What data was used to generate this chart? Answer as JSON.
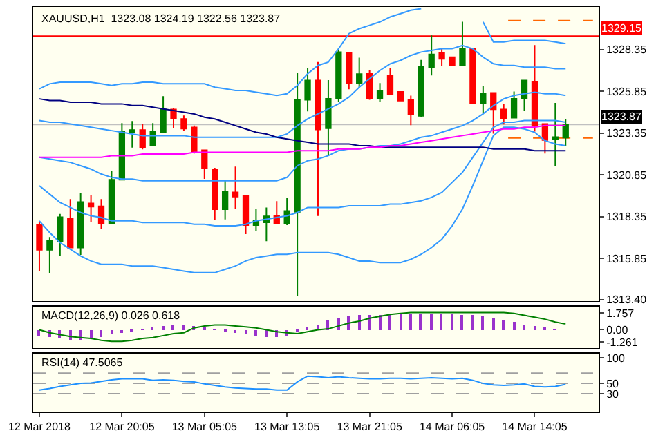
{
  "chart_data": [
    {
      "type": "candlestick",
      "title": "XAUUSD,H1  1323.08 1324.19 1322.56 1323.87",
      "tick_labels": "y",
      "categories": [
        null,
        null,
        null,
        null,
        null,
        null,
        null,
        null,
        null,
        null,
        null,
        null,
        null,
        null,
        null,
        null,
        null,
        null,
        null,
        null,
        null,
        null,
        null,
        null,
        null,
        null,
        null,
        null,
        null,
        null,
        null,
        null,
        null,
        null,
        null,
        null,
        null,
        null,
        null,
        null,
        null,
        null,
        null,
        null,
        null,
        null,
        null,
        null,
        null,
        null,
        null,
        null
      ],
      "ohlc": [
        [
          1317.89,
          1318.01,
          1315.11,
          1316.37
        ],
        [
          1316.37,
          1317.13,
          1314.98,
          1316.93
        ],
        [
          1316.88,
          1318.52,
          1315.99,
          1318.32
        ],
        [
          1318.24,
          1319.4,
          1316.5,
          1316.5
        ],
        [
          1316.5,
          1319.78,
          1316.07,
          1319.23
        ],
        [
          1319.15,
          1319.65,
          1318.01,
          1318.95
        ],
        [
          1318.97,
          1319.4,
          1317.63,
          1317.96
        ],
        [
          1317.96,
          1321.09,
          1317.96,
          1320.56
        ],
        [
          1320.56,
          1323.95,
          1320.56,
          1323.44
        ],
        [
          1323.39,
          1324.07,
          1322.48,
          1323.54
        ],
        [
          1323.54,
          1323.9,
          1322.38,
          1322.48
        ],
        [
          1322.63,
          1323.95,
          1322.56,
          1323.44
        ],
        [
          1323.39,
          1325.56,
          1323.39,
          1324.78
        ],
        [
          1324.76,
          1324.83,
          1323.64,
          1324.25
        ],
        [
          1324.2,
          1324.4,
          1323.49,
          1323.62
        ],
        [
          1323.69,
          1323.8,
          1322.13,
          1322.25
        ],
        [
          1322.33,
          1322.33,
          1320.61,
          1321.24
        ],
        [
          1321.17,
          1321.27,
          1318.14,
          1318.8
        ],
        [
          1318.8,
          1320.49,
          1318.19,
          1319.83
        ],
        [
          1319.81,
          1321.35,
          1318.82,
          1319.55
        ],
        [
          1319.6,
          1319.6,
          1317.31,
          1317.84
        ],
        [
          1317.84,
          1318.82,
          1317.51,
          1318.09
        ],
        [
          1318.01,
          1318.9,
          1316.88,
          1318.37
        ],
        [
          1318.39,
          1319.28,
          1317.96,
          1317.96
        ],
        [
          1317.96,
          1319.5,
          1317.84,
          1318.69
        ],
        [
          1318.64,
          1326.98,
          1313.59,
          1325.34
        ],
        [
          1325.34,
          1327.23,
          1324.65,
          1326.5
        ],
        [
          1326.5,
          1327.61,
          1318.39,
          1323.57
        ],
        [
          1323.64,
          1326.52,
          1322.05,
          1325.41
        ],
        [
          1325.41,
          1328.44,
          1325.21,
          1328.19
        ],
        [
          1328.16,
          1328.16,
          1325.97,
          1326.35
        ],
        [
          1326.35,
          1327.86,
          1326.09,
          1326.88
        ],
        [
          1326.9,
          1327.1,
          1325.34,
          1325.41
        ],
        [
          1325.41,
          1326.35,
          1325.21,
          1325.89
        ],
        [
          1326.78,
          1327.23,
          1325.66,
          1325.66
        ],
        [
          1325.82,
          1325.82,
          1325.29,
          1325.29
        ],
        [
          1325.34,
          1325.59,
          1323.82,
          1324.45
        ],
        [
          1324.38,
          1327.73,
          1324.33,
          1327.31
        ],
        [
          1327.28,
          1329.2,
          1326.8,
          1328.06
        ],
        [
          1328.16,
          1328.44,
          1327.36,
          1327.79
        ],
        [
          1327.89,
          1327.89,
          1327.36,
          1327.41
        ],
        [
          1327.43,
          1330.01,
          1327.43,
          1328.39
        ],
        [
          1328.39,
          1328.44,
          1325.08,
          1325.13
        ],
        [
          1325.13,
          1326.17,
          1324.58,
          1325.71
        ],
        [
          1325.76,
          1325.76,
          1323.32,
          1324.78
        ],
        [
          1324.76,
          1325.08,
          1323.87,
          1324.25
        ],
        [
          1324.27,
          1325.84,
          1324.27,
          1325.41
        ],
        [
          1325.41,
          1326.5,
          1324.7,
          1326.5
        ],
        [
          1326.42,
          1328.62,
          1323.44,
          1323.77
        ],
        [
          1323.9,
          1323.9,
          1322.13,
          1322.94
        ],
        [
          1322.99,
          1325.16,
          1321.37,
          1323.11
        ],
        [
          1323.08,
          1324.19,
          1322.56,
          1323.87
        ]
      ],
      "colors": [
        "#ff0000",
        "#008000",
        "#008000",
        "#ff0000",
        "#008000",
        "#ff0000",
        "#ff0000",
        "#008000",
        "#008000",
        "#008000",
        "#ff0000",
        "#008000",
        "#008000",
        "#ff0000",
        "#ff0000",
        "#ff0000",
        "#ff0000",
        "#ff0000",
        "#008000",
        "#ff0000",
        "#ff0000",
        "#008000",
        "#008000",
        "#ff0000",
        "#008000",
        "#008000",
        "#008000",
        "#ff0000",
        "#008000",
        "#008000",
        "#ff0000",
        "#008000",
        "#ff0000",
        "#008000",
        "#ff0000",
        "#ff0000",
        "#ff0000",
        "#008000",
        "#008000",
        "#ff0000",
        "#ff0000",
        "#008000",
        "#ff0000",
        "#008000",
        "#ff0000",
        "#ff0000",
        "#008000",
        "#008000",
        "#ff0000",
        "#ff0000",
        "#008000",
        "#008000"
      ],
      "series": [
        {
          "type": "line",
          "color": "#3399ff",
          "values": [
            1326.0,
            1326.3,
            1326.4,
            1326.4,
            1326.4,
            1326.4,
            1326.3,
            1326.2,
            1326.3,
            1326.3,
            1326.4,
            1326.4,
            1326.3,
            1326.3,
            1326.3,
            1326.3,
            1326.3,
            1326.1,
            1326.0,
            1325.9,
            1325.9,
            1325.8,
            1325.7,
            1325.6,
            1325.7,
            1326.2,
            1326.9,
            1327.4,
            1327.6,
            1328.4,
            1329.3,
            1329.6,
            1329.8,
            1330.0,
            1330.3,
            1330.5,
            1330.7,
            1330.8,
            null,
            null,
            null,
            null,
            null,
            1330.0,
            1328.8,
            1328.8,
            1328.9,
            1328.9,
            1328.9,
            1328.9,
            1328.8,
            1328.7
          ]
        },
        {
          "type": "line",
          "color": "#3399ff",
          "values": [
            1324.1,
            1324.0,
            1324.0,
            1323.9,
            1323.8,
            1323.7,
            1323.6,
            1323.5,
            1323.4,
            1323.3,
            1323.2,
            1323.2,
            1323.2,
            1323.2,
            1323.2,
            1323.1,
            1323.1,
            1323.1,
            1323.1,
            1323.1,
            1323.1,
            1323.1,
            1323.1,
            1323.1,
            1323.3,
            1323.8,
            1324.2,
            1324.5,
            1324.8,
            1325.1,
            1325.5,
            1326.1,
            1326.6,
            1327.1,
            1327.5,
            1327.7,
            1328.0,
            1328.2,
            1328.3,
            1328.4,
            1328.4,
            1328.6,
            1328.4,
            1327.9,
            1327.5,
            1327.4,
            1327.4,
            1327.3,
            1327.3,
            1327.3,
            1327.2,
            1327.2
          ]
        },
        {
          "type": "line",
          "color": "#3399ff",
          "values": [
            1321.9,
            1321.8,
            1321.7,
            1321.6,
            1321.4,
            1321.2,
            1320.9,
            1320.7,
            1320.6,
            1320.6,
            1320.5,
            1320.5,
            1320.5,
            1320.5,
            1320.5,
            1320.5,
            1320.5,
            1320.5,
            1320.5,
            1320.5,
            1320.5,
            1320.5,
            1320.5,
            1320.5,
            1320.7,
            1321.4,
            1321.7,
            1321.8,
            1322.0,
            1322.3,
            1322.4,
            1322.4,
            1322.5,
            1322.6,
            1322.6,
            1322.7,
            1322.9,
            1323.1,
            1323.2,
            1323.4,
            1323.6,
            1323.8,
            1324.1,
            1324.5,
            1325.0,
            1325.4,
            1325.6,
            1325.7,
            1325.8,
            1325.7,
            1325.7,
            1325.6
          ]
        },
        {
          "type": "line",
          "color": "#3399ff",
          "values": [
            1320.2,
            1319.7,
            1319.2,
            1318.9,
            1318.6,
            1318.4,
            1318.3,
            1318.1,
            1318.1,
            1318.1,
            1318.0,
            1318.0,
            1318.0,
            1318.0,
            1318.0,
            1317.9,
            1317.9,
            1317.8,
            1317.8,
            1317.8,
            1317.9,
            1318.1,
            1318.2,
            1318.3,
            1318.4,
            1318.6,
            1318.9,
            1318.9,
            1318.9,
            1318.9,
            1319.0,
            1319.0,
            1319.0,
            1319.0,
            1319.1,
            1319.1,
            1319.2,
            1319.3,
            1319.5,
            1319.8,
            1320.4,
            1321.0,
            1321.9,
            1322.8,
            1323.7,
            1324.0,
            1324.0,
            1324.1,
            1324.1,
            1324.1,
            1324.1,
            1324.0
          ]
        },
        {
          "type": "line",
          "color": "#3399ff",
          "values": [
            1318.1,
            1317.4,
            1316.8,
            1316.4,
            1316.0,
            1315.7,
            1315.5,
            1315.5,
            1315.5,
            1315.4,
            1315.4,
            1315.4,
            1315.3,
            1315.2,
            1315.1,
            1315.0,
            1315.0,
            1315.0,
            1315.2,
            1315.4,
            1315.7,
            1315.9,
            1316.0,
            1316.1,
            1316.1,
            1316.2,
            1316.2,
            1316.2,
            1316.2,
            1316.1,
            1315.9,
            1315.7,
            1315.7,
            1315.6,
            1315.6,
            1315.6,
            1315.8,
            1316.1,
            1316.5,
            1317.0,
            1317.8,
            1318.8,
            1320.2,
            1321.7,
            1323.2,
            1323.7,
            1323.7,
            1323.6,
            1323.4,
            1322.9,
            1322.7,
            1322.6
          ]
        },
        {
          "type": "line",
          "color": "#000080",
          "values": [
            1325.4,
            1325.3,
            1325.3,
            1325.2,
            1325.2,
            1325.2,
            1325.1,
            1325.1,
            1325.1,
            1325.0,
            1325.0,
            1324.9,
            1324.8,
            1324.7,
            1324.6,
            1324.5,
            1324.3,
            1324.2,
            1324.0,
            1323.8,
            1323.6,
            1323.4,
            1323.3,
            1323.1,
            1323.0,
            1322.9,
            1322.8,
            1322.7,
            1322.7,
            1322.7,
            1322.7,
            1322.6,
            1322.6,
            1322.5,
            1322.5,
            1322.5,
            1322.5,
            1322.5,
            1322.5,
            1322.5,
            1322.5,
            1322.5,
            1322.5,
            1322.5,
            1322.4,
            1322.4,
            1322.4,
            1322.4,
            1322.3,
            1322.3,
            1322.3,
            1322.3
          ]
        },
        {
          "type": "line",
          "color": "#ff00ff",
          "values": [
            1321.9,
            1321.9,
            1321.9,
            1321.9,
            1321.9,
            1321.9,
            1321.9,
            1322.0,
            1322.0,
            1322.0,
            1322.1,
            1322.1,
            1322.1,
            1322.1,
            1322.1,
            1322.2,
            1322.2,
            1322.2,
            1322.2,
            1322.2,
            1322.2,
            1322.2,
            1322.2,
            1322.2,
            1322.2,
            1322.3,
            1322.3,
            1322.3,
            1322.3,
            1322.4,
            1322.4,
            1322.4,
            1322.5,
            1322.5,
            1322.6,
            1322.6,
            1322.7,
            1322.8,
            1322.9,
            1323.0,
            1323.1,
            1323.2,
            1323.3,
            1323.4,
            1323.5,
            1323.6,
            1323.6,
            1323.7,
            1323.7,
            1323.8,
            1323.8,
            1323.8
          ]
        }
      ],
      "ylim": [
        1313.3,
        1330.9
      ],
      "yticks": [
        1328.35,
        1325.85,
        1323.35,
        1320.85,
        1318.35,
        1315.85,
        {
          "value": 1313.4,
          "label": "1313.40"
        }
      ],
      "ref_lines": [
        {
          "axis": "y",
          "value": 1329.15,
          "label": "1329.15",
          "color": "#ff0000"
        },
        {
          "axis": "y",
          "value": 1323.87,
          "label": "1323.87",
          "color": "#c0c0c0"
        },
        {
          "axis": "y",
          "value": 1330.08,
          "color": "#ff6600",
          "line_style": "dashed"
        },
        {
          "axis": "y",
          "value": 1323.06,
          "color": "#ff6600",
          "line_style": "dashed"
        }
      ]
    },
    {
      "type": "bar",
      "title": "MACD(12,26,9) 0.026 0.618",
      "tick_labels": "y",
      "categories": [
        null,
        null,
        null,
        null,
        null,
        null,
        null,
        null,
        null,
        null,
        null,
        null,
        null,
        null,
        null,
        null,
        null,
        null,
        null,
        null,
        null,
        null,
        null,
        null,
        null,
        null,
        null,
        null,
        null,
        null,
        null,
        null,
        null,
        null,
        null,
        null,
        null,
        null,
        null,
        null,
        null,
        null,
        null,
        null,
        null,
        null,
        null,
        null,
        null,
        null,
        null,
        null
      ],
      "series": [
        {
          "type": "bar",
          "color": "#9932cc",
          "values": [
            -0.6,
            -0.8,
            -0.9,
            -1.0,
            -1.0,
            -0.9,
            -0.7,
            -0.5,
            -0.3,
            -0.1,
            0.1,
            0.2,
            0.4,
            0.5,
            0.5,
            0.4,
            0.3,
            0.1,
            -0.1,
            -0.3,
            -0.5,
            -0.6,
            -0.7,
            -0.7,
            -0.6,
            -0.2,
            0.3,
            0.6,
            0.9,
            1.2,
            1.4,
            1.5,
            1.6,
            1.6,
            1.7,
            1.7,
            1.7,
            1.7,
            1.7,
            1.7,
            1.7,
            1.6,
            1.5,
            1.4,
            1.2,
            1.0,
            0.8,
            0.6,
            0.4,
            0.2,
            0.1,
            0.0
          ]
        },
        {
          "type": "line",
          "color": "#008000",
          "values": [
            0.0,
            -0.3,
            -0.5,
            -0.7,
            -0.8,
            -0.9,
            -1.1,
            -1.2,
            -1.2,
            -1.1,
            -0.9,
            -0.8,
            -0.6,
            -0.4,
            -0.3,
            0.2,
            0.4,
            0.5,
            0.5,
            0.4,
            0.3,
            0.2,
            0.0,
            -0.2,
            -0.3,
            -0.4,
            -0.2,
            0.0,
            0.1,
            0.4,
            0.7,
            0.9,
            1.2,
            1.4,
            1.6,
            1.7,
            1.8,
            1.8,
            1.8,
            1.8,
            1.8,
            1.8,
            1.8,
            1.8,
            1.8,
            1.8,
            1.7,
            1.5,
            1.3,
            1.1,
            0.8,
            0.6
          ]
        }
      ],
      "ylim": [
        -1.9,
        2.4
      ],
      "yticks": [
        1.757,
        {
          "value": 0,
          "label": "0.00"
        },
        -1.261
      ]
    },
    {
      "type": "line",
      "title": "RSI(14) 47.5065",
      "categories": [
        "12 Mar 2018",
        null,
        null,
        null,
        null,
        null,
        null,
        null,
        "12 Mar 20:05",
        null,
        null,
        null,
        null,
        null,
        null,
        null,
        "13 Mar 05:05",
        null,
        null,
        null,
        null,
        null,
        null,
        null,
        "13 Mar 13:05",
        null,
        null,
        null,
        null,
        null,
        null,
        null,
        "13 Mar 21:05",
        null,
        null,
        null,
        null,
        null,
        null,
        null,
        "14 Mar 06:05",
        null,
        null,
        null,
        null,
        null,
        null,
        null,
        "14 Mar 14:05",
        null,
        null,
        null
      ],
      "series": [
        {
          "color": "#1e90ff",
          "values": [
            37,
            40,
            44,
            47,
            50,
            51,
            54,
            57,
            59,
            59,
            59,
            56,
            57,
            56,
            54,
            53,
            49,
            46,
            43,
            41,
            40,
            39,
            39,
            37,
            37,
            53,
            64,
            63,
            61,
            63,
            61,
            60,
            59,
            59,
            60,
            60,
            59,
            60,
            61,
            60,
            59,
            60,
            56,
            50,
            47,
            46,
            47,
            49,
            44,
            43,
            44,
            48
          ]
        }
      ],
      "ylim": [
        -5,
        108
      ],
      "yticks": [
        100,
        50,
        30
      ],
      "ref_lines": [
        {
          "axis": "y",
          "value": 70,
          "color": "#a0a0a0",
          "line_style": "dashed"
        },
        {
          "axis": "y",
          "value": 50,
          "color": "#a0a0a0",
          "line_style": "dashed"
        },
        {
          "axis": "y",
          "value": 30,
          "color": "#a0a0a0",
          "line_style": "dashed"
        }
      ]
    }
  ]
}
